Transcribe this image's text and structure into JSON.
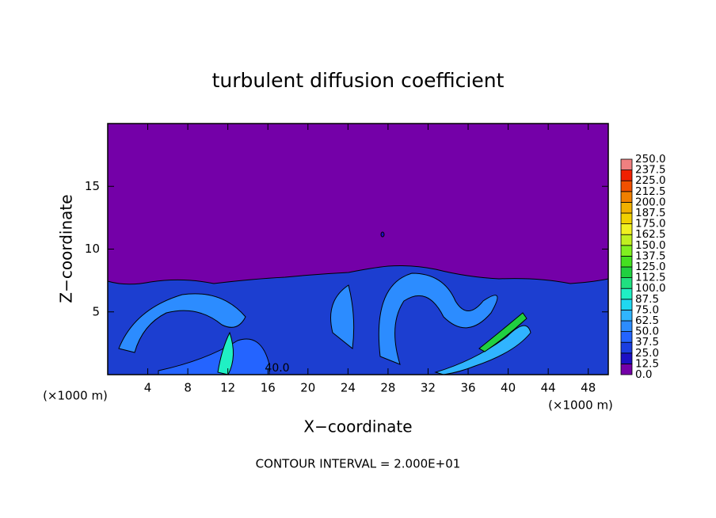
{
  "chart_data": {
    "type": "contour",
    "title": "turbulent diffusion coefficient",
    "x_label": "X−coordinate",
    "y_label": "Z−coordinate",
    "x_unit": "(×1000 m)",
    "y_unit": "(×1000 m)",
    "footnote": "CONTOUR INTERVAL = 2.000E+01",
    "contour_label": "40.0",
    "xlim": [
      0,
      50
    ],
    "xticks": [
      4,
      8,
      12,
      16,
      20,
      24,
      28,
      32,
      36,
      40,
      44,
      48
    ],
    "ylim": [
      0,
      20
    ],
    "yticks": [
      5,
      10,
      15
    ],
    "colorbar": {
      "levels": [
        {
          "value": 0,
          "label": "0.0"
        },
        {
          "value": 12.5,
          "label": "12.5"
        },
        {
          "value": 25,
          "label": "25.0"
        },
        {
          "value": 37.5,
          "label": "37.5"
        },
        {
          "value": 50,
          "label": "50.0"
        },
        {
          "value": 62.5,
          "label": "62.5"
        },
        {
          "value": 75,
          "label": "75.0"
        },
        {
          "value": 87.5,
          "label": "87.5"
        },
        {
          "value": 100,
          "label": "100.0"
        },
        {
          "value": 112.5,
          "label": "112.5"
        },
        {
          "value": 125,
          "label": "125.0"
        },
        {
          "value": 137.5,
          "label": "137.5"
        },
        {
          "value": 150,
          "label": "150.0"
        },
        {
          "value": 162.5,
          "label": "162.5"
        },
        {
          "value": 175,
          "label": "175.0"
        },
        {
          "value": 187.5,
          "label": "187.5"
        },
        {
          "value": 200,
          "label": "200.0"
        },
        {
          "value": 212.5,
          "label": "212.5"
        },
        {
          "value": 225,
          "label": "225.0"
        },
        {
          "value": 237.5,
          "label": "237.5"
        },
        {
          "value": 250,
          "label": "250.0"
        }
      ],
      "colors": [
        "#7400a8",
        "#1c10c4",
        "#1a3ee0",
        "#2464ff",
        "#2c8cff",
        "#30b4ff",
        "#20d8f0",
        "#20f0c4",
        "#20e080",
        "#20d040",
        "#44e020",
        "#80f020",
        "#c0f020",
        "#f0f020",
        "#f0d000",
        "#f0b000",
        "#f08000",
        "#f05000",
        "#f02000",
        "#f08080"
      ]
    }
  }
}
